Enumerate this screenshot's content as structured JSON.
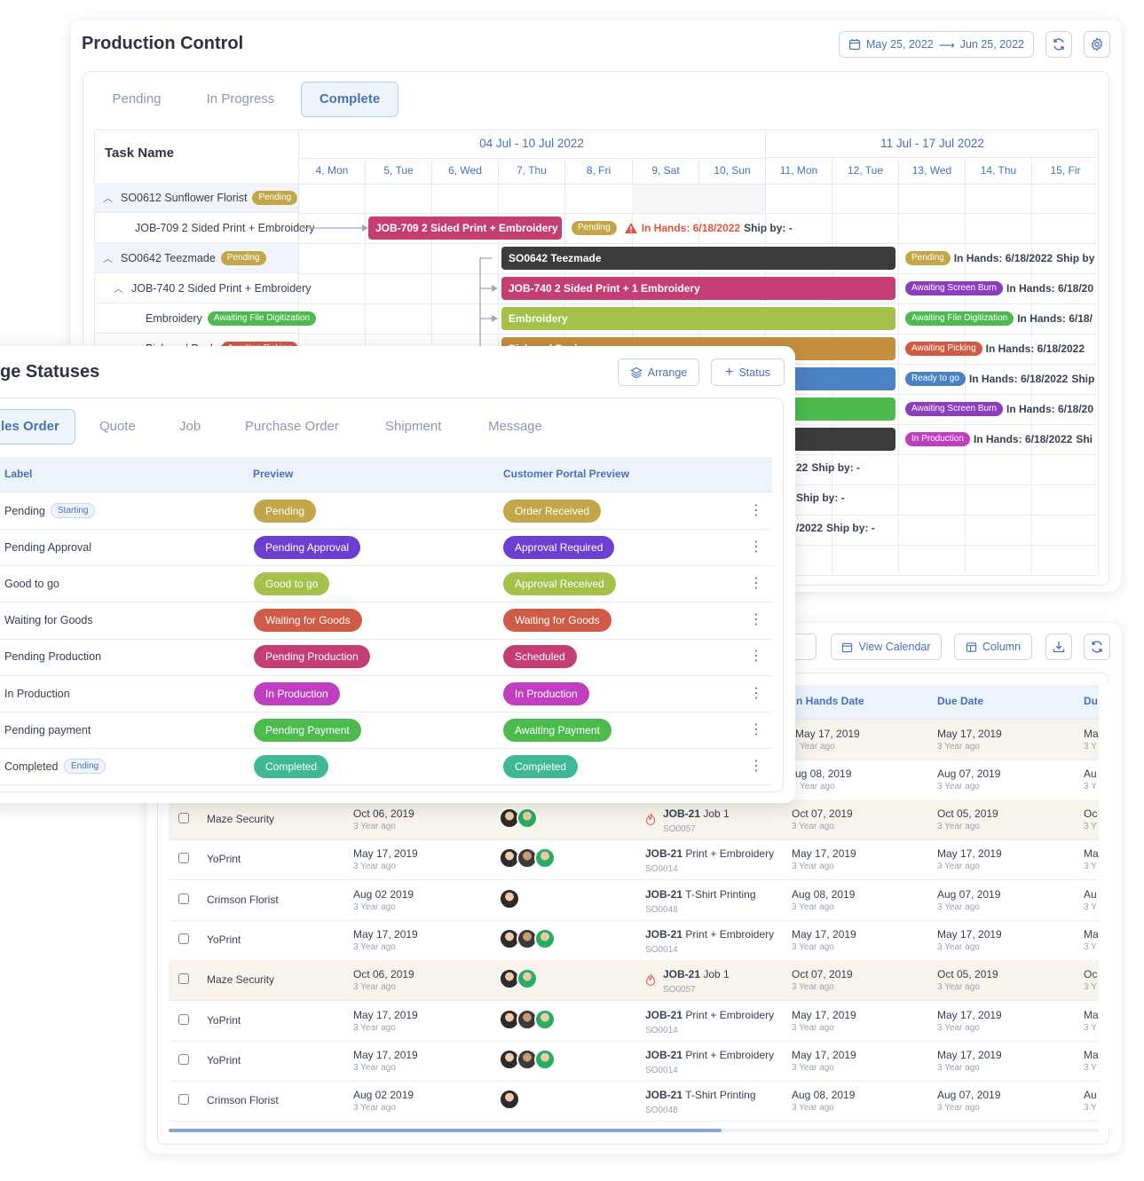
{
  "production": {
    "title": "Production Control",
    "date_from": "May 25, 2022",
    "date_to": "Jun 25, 2022",
    "tabs": [
      "Pending",
      "In Progress",
      "Complete"
    ],
    "task_header": "Task Name",
    "weeks": [
      "04 Jul - 10 Jul 2022",
      "11 Jul - 17 Jul 2022"
    ],
    "days": [
      "4, Mon",
      "5, Tue",
      "6, Wed",
      "7, Thu",
      "8, Fri",
      "9, Sat",
      "10, Sun",
      "11, Mon",
      "12, Tue",
      "13, Wed",
      "14, Thu",
      "15, Fir"
    ],
    "tasks": [
      {
        "name": "SO0612 Sunflower Florist",
        "status": "Pending"
      },
      {
        "name": "JOB-709 2 Sided Print + Embroidery"
      },
      {
        "name": "SO0642 Teezmade",
        "status": "Pending"
      },
      {
        "name": "JOB-740 2 Sided Print + Embroidery"
      },
      {
        "name": "Embroidery",
        "status": "Awaiting File Digitization"
      },
      {
        "name": "Pick and Pack",
        "status": "Awaiting Picking"
      }
    ],
    "bars": [
      {
        "label": "JOB-709 2 Sided Print + Embroidery",
        "color": "#c43e74"
      },
      {
        "label": "SO0642 Teezmade",
        "color": "#3b3b3b"
      },
      {
        "label": "JOB-740 2 Sided Print + 1 Embroidery",
        "color": "#c43e74"
      },
      {
        "label": "Embroidery",
        "color": "#a4c24a"
      },
      {
        "label": "Pick and Pack",
        "color": "#c58f3f"
      },
      {
        "label": "",
        "color": "#4a82c4"
      },
      {
        "label": "",
        "color": "#4cba4f"
      },
      {
        "label": "",
        "color": "#3b3b3b"
      }
    ],
    "row_info": [
      {
        "status": "Pending",
        "color": "#c2a648",
        "in_hands": "In Hands: 6/18/2022",
        "ship": "Ship by: -"
      },
      {
        "status": "Pending",
        "color": "#c2a648",
        "in_hands": "In Hands: 6/18/2022",
        "ship": "Ship by"
      },
      {
        "status": "Awaiting Screen Burn",
        "color": "#8b3dbd",
        "in_hands": "In Hands: 6/18/20"
      },
      {
        "status": "Awaiting File Digitization",
        "color": "#4cba4f",
        "in_hands": "In Hands: 6/18/"
      },
      {
        "status": "Awaiting Picking",
        "color": "#d15a44",
        "in_hands": "In Hands: 6/18/2022"
      },
      {
        "status": "Ready to go",
        "color": "#4a82c4",
        "in_hands": "In Hands: 6/18/2022",
        "ship": "Ship"
      },
      {
        "status": "Awaiting Screen Burn",
        "color": "#8b3dbd",
        "in_hands": "In Hands: 6/18/20"
      },
      {
        "status": "In Production",
        "color": "#c03ec0",
        "in_hands": "In Hands: 6/18/2022",
        "ship": "Shi"
      }
    ],
    "ship_rows": [
      {
        "date": "22",
        "ship": "Ship by: -"
      },
      {
        "date": "",
        "ship": "Ship by: -"
      },
      {
        "date": "/2022",
        "ship": "Ship by: -"
      }
    ]
  },
  "statuses": {
    "title": "ge Statuses",
    "arrange_label": "Arrange",
    "status_label": "Status",
    "tabs": [
      "les Order",
      "Quote",
      "Job",
      "Purchase Order",
      "Shipment",
      "Message"
    ],
    "columns": [
      "Label",
      "Preview",
      "Customer Portal Preview"
    ],
    "rows": [
      {
        "label": "Pending",
        "tag": "Starting",
        "preview": "Pending",
        "pcolor": "#c2a648",
        "portal": "Order Received",
        "ccolor": "#c2a648"
      },
      {
        "label": "Pending Approval",
        "preview": "Pending Approval",
        "pcolor": "#6d3fd0",
        "portal": "Approval Required",
        "ccolor": "#6d3fd0"
      },
      {
        "label": "Good to go",
        "preview": "Good to go",
        "pcolor": "#a4c24a",
        "portal": "Approval Received",
        "ccolor": "#a4c24a"
      },
      {
        "label": "Waiting for Goods",
        "preview": "Waiting for Goods",
        "pcolor": "#cf5a45",
        "portal": "Waiting for Goods",
        "ccolor": "#cf5a45"
      },
      {
        "label": "Pending Production",
        "preview": "Pending Production",
        "pcolor": "#c43e74",
        "portal": "Scheduled",
        "ccolor": "#c43e74"
      },
      {
        "label": "In Production",
        "preview": "In Production",
        "pcolor": "#c03ec0",
        "portal": "In Production",
        "ccolor": "#c03ec0"
      },
      {
        "label": "Pending payment",
        "preview": "Pending Payment",
        "pcolor": "#4cba4f",
        "portal": "Awaiting Payment",
        "ccolor": "#4cba4f"
      },
      {
        "label": "Completed",
        "tag": "Ending",
        "preview": "Completed",
        "pcolor": "#3fb897",
        "portal": "Completed",
        "ccolor": "#3fb897"
      }
    ]
  },
  "orders": {
    "view_calendar_label": "View Calendar",
    "column_label": "Column",
    "columns": [
      "n Hands Date",
      "Due Date",
      "Du"
    ],
    "top_rows": [
      {
        "in_hands": "May 17, 2019",
        "in_hands_ago": "Year ago",
        "due": "May 17, 2019",
        "due_ago": "3 Year ago",
        "more": "Ma",
        "more_ago": "3 Y"
      },
      {
        "in_hands": "ug 08, 2019",
        "in_hands_ago": "Year ago",
        "due": "Aug 07, 2019",
        "due_ago": "3 Year ago",
        "more": "Au",
        "more_ago": "3 Y"
      }
    ],
    "rows": [
      {
        "customer": "Maze Security",
        "date": "Oct 06, 2019",
        "ago": "3 Year ago",
        "avatars": 2,
        "job": "JOB-21",
        "job_name": "Job 1",
        "so": "SO0057",
        "flag": true,
        "in_hands": "Oct 07, 2019",
        "in_hands_ago": "3 Year ago",
        "due": "Oct 05, 2019",
        "due_ago": "3 Year ago",
        "more": "Oc",
        "more_ago": "3 Y"
      },
      {
        "customer": "YoPrint",
        "date": "May 17, 2019",
        "ago": "3 Year ago",
        "avatars": 3,
        "job": "JOB-21",
        "job_name": "Print + Embroidery",
        "so": "SO0014",
        "in_hands": "May 17, 2019",
        "in_hands_ago": "3 Year ago",
        "due": "May 17, 2019",
        "due_ago": "3 Year ago",
        "more": "Ma",
        "more_ago": "3 Y"
      },
      {
        "customer": "Crimson Florist",
        "date": "Aug 02 2019",
        "ago": "3 Year ago",
        "avatars": 1,
        "job": "JOB-21",
        "job_name": "T-Shirt Printing",
        "so": "SO0048",
        "in_hands": "Aug 08, 2019",
        "in_hands_ago": "3 Year ago",
        "due": "Aug 07, 2019",
        "due_ago": "3 Year ago",
        "more": "Au",
        "more_ago": "3 Y"
      },
      {
        "customer": "YoPrint",
        "date": "May 17, 2019",
        "ago": "3 Year ago",
        "avatars": 3,
        "job": "JOB-21",
        "job_name": "Print + Embroidery",
        "so": "SO0014",
        "in_hands": "May 17, 2019",
        "in_hands_ago": "3 Year ago",
        "due": "May 17, 2019",
        "due_ago": "3 Year ago",
        "more": "Ma",
        "more_ago": "3 Y"
      },
      {
        "customer": "Maze Security",
        "date": "Oct 06, 2019",
        "ago": "3 Year ago",
        "avatars": 2,
        "job": "JOB-21",
        "job_name": "Job 1",
        "so": "SO0057",
        "flag": true,
        "in_hands": "Oct 07, 2019",
        "in_hands_ago": "3 Year ago",
        "due": "Oct 05, 2019",
        "due_ago": "3 Year ago",
        "more": "Oc",
        "more_ago": "3 Y"
      },
      {
        "customer": "YoPrint",
        "date": "May 17, 2019",
        "ago": "3 Year ago",
        "avatars": 3,
        "job": "JOB-21",
        "job_name": "Print + Embroidery",
        "so": "SO0014",
        "in_hands": "May 17, 2019",
        "in_hands_ago": "3 Year ago",
        "due": "May 17, 2019",
        "due_ago": "3 Year ago",
        "more": "Ma",
        "more_ago": "3 Y"
      },
      {
        "customer": "YoPrint",
        "date": "May 17, 2019",
        "ago": "3 Year ago",
        "avatars": 3,
        "job": "JOB-21",
        "job_name": "Print + Embroidery",
        "so": "SO0014",
        "in_hands": "May 17, 2019",
        "in_hands_ago": "3 Year ago",
        "due": "May 17, 2019",
        "due_ago": "3 Year ago",
        "more": "Ma",
        "more_ago": "3 Y"
      },
      {
        "customer": "Crimson Florist",
        "date": "Aug 02 2019",
        "ago": "3 Year ago",
        "avatars": 1,
        "job": "JOB-21",
        "job_name": "T-Shirt Printing",
        "so": "SO0048",
        "in_hands": "Aug 08, 2019",
        "in_hands_ago": "3 Year ago",
        "due": "Aug 07, 2019",
        "due_ago": "3 Year ago",
        "more": "Au",
        "more_ago": "3 Y"
      }
    ]
  }
}
